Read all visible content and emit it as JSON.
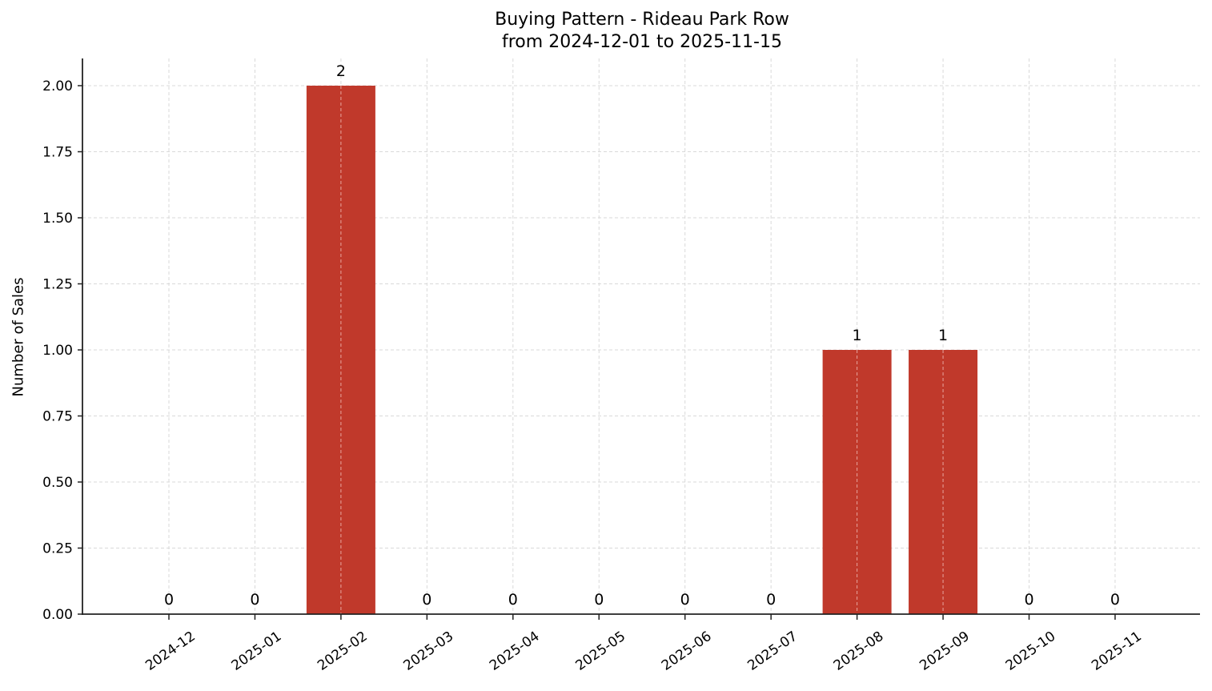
{
  "chart": {
    "title_line1": "Buying Pattern - Rideau Park Row",
    "title_line2": "from 2024-12-01 to 2025-11-15",
    "ylabel": "Number of Sales",
    "bar_color": "#c0392b"
  },
  "chart_data": {
    "type": "bar",
    "title": "Buying Pattern - Rideau Park Row\nfrom 2024-12-01 to 2025-11-15",
    "xlabel": "",
    "ylabel": "Number of Sales",
    "categories": [
      "2024-12",
      "2025-01",
      "2025-02",
      "2025-03",
      "2025-04",
      "2025-05",
      "2025-06",
      "2025-07",
      "2025-08",
      "2025-09",
      "2025-10",
      "2025-11"
    ],
    "values": [
      0,
      0,
      2,
      0,
      0,
      0,
      0,
      0,
      1,
      1,
      0,
      0
    ],
    "data_labels": [
      "0",
      "0",
      "2",
      "0",
      "0",
      "0",
      "0",
      "0",
      "1",
      "1",
      "0",
      "0"
    ],
    "ylim": [
      0,
      2.1
    ],
    "yticks": [
      "0.00",
      "0.25",
      "0.50",
      "0.75",
      "1.00",
      "1.25",
      "1.50",
      "1.75",
      "2.00"
    ],
    "grid": true,
    "legend": null,
    "bar_color": "#c0392b",
    "xtick_rotation": 35
  }
}
